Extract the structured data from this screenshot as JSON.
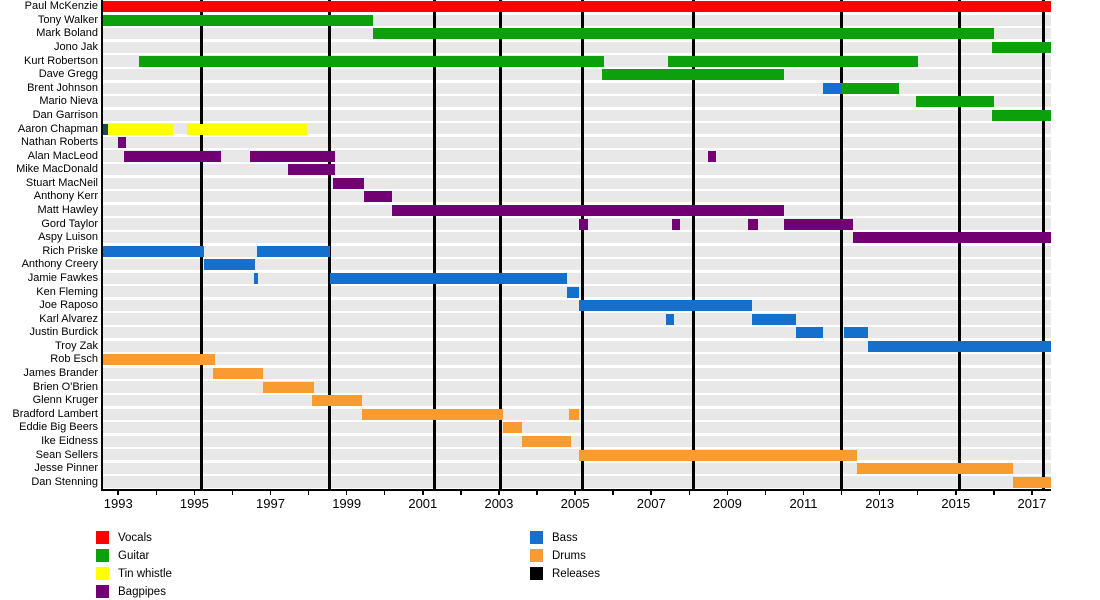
{
  "chart_data": {
    "type": "timeline-gantt",
    "description": "Band member timeline by instrument",
    "x_domain": [
      1992.6,
      2017.5
    ],
    "tick_years": [
      1993,
      1994,
      1995,
      1996,
      1997,
      1998,
      1999,
      2000,
      2001,
      2002,
      2003,
      2004,
      2005,
      2006,
      2007,
      2008,
      2009,
      2010,
      2011,
      2012,
      2013,
      2014,
      2015,
      2016,
      2017
    ],
    "label_years": [
      1993,
      1995,
      1997,
      1999,
      2001,
      2003,
      2005,
      2007,
      2009,
      2011,
      2013,
      2015,
      2017
    ],
    "instrument_colors": {
      "vocals": "#FF0000",
      "guitar": "#0CA10C",
      "tin_whistle": "#FFFF00",
      "bagpipes": "#730073",
      "bass": "#1470CC",
      "drums": "#F89C32",
      "releases": "#000000"
    },
    "members": [
      {
        "name": "Paul McKenzie",
        "bars": [
          {
            "instrument": "vocals",
            "start": 1992.6,
            "end": 2017.5
          }
        ]
      },
      {
        "name": "Tony Walker",
        "bars": [
          {
            "instrument": "guitar",
            "start": 1992.6,
            "end": 1999.7
          }
        ]
      },
      {
        "name": "Mark Boland",
        "bars": [
          {
            "instrument": "guitar",
            "start": 1999.7,
            "end": 2016.0
          }
        ]
      },
      {
        "name": "Jono Jak",
        "bars": [
          {
            "instrument": "guitar",
            "start": 2015.95,
            "end": 2017.5
          }
        ]
      },
      {
        "name": "Kurt Robertson",
        "bars": [
          {
            "instrument": "guitar",
            "start": 1993.55,
            "end": 2005.75
          },
          {
            "instrument": "guitar",
            "start": 2007.45,
            "end": 2014.0
          }
        ]
      },
      {
        "name": "Dave Gregg",
        "bars": [
          {
            "instrument": "guitar",
            "start": 2005.7,
            "end": 2010.5
          }
        ]
      },
      {
        "name": "Brent Johnson",
        "bars": [
          {
            "instrument": "bass",
            "start": 2011.5,
            "end": 2012.0
          },
          {
            "instrument": "guitar",
            "start": 2012.0,
            "end": 2013.5
          }
        ]
      },
      {
        "name": "Mario Nieva",
        "bars": [
          {
            "instrument": "guitar",
            "start": 2013.95,
            "end": 2016.0
          }
        ]
      },
      {
        "name": "Dan Garrison",
        "bars": [
          {
            "instrument": "guitar",
            "start": 2015.95,
            "end": 2017.5
          }
        ]
      },
      {
        "name": "Aaron Chapman",
        "bars": [
          {
            "instrument": "releases",
            "color": "#1C4A57",
            "start": 1992.6,
            "end": 1992.72
          },
          {
            "instrument": "tin_whistle",
            "start": 1992.72,
            "end": 1994.45
          },
          {
            "instrument": "tin_whistle",
            "start": 1994.8,
            "end": 1997.95
          }
        ]
      },
      {
        "name": "Nathan Roberts",
        "bars": [
          {
            "instrument": "bagpipes",
            "start": 1993.0,
            "end": 1993.2
          }
        ]
      },
      {
        "name": "Alan MacLeod",
        "bars": [
          {
            "instrument": "bagpipes",
            "start": 1993.15,
            "end": 1995.7
          },
          {
            "instrument": "bagpipes",
            "start": 1996.45,
            "end": 1998.7
          },
          {
            "instrument": "bagpipes",
            "start": 2008.5,
            "end": 2008.7
          }
        ]
      },
      {
        "name": "Mike MacDonald",
        "bars": [
          {
            "instrument": "bagpipes",
            "start": 1997.45,
            "end": 1998.7
          }
        ]
      },
      {
        "name": "Stuart MacNeil",
        "bars": [
          {
            "instrument": "bagpipes",
            "start": 1998.65,
            "end": 1999.45
          }
        ]
      },
      {
        "name": "Anthony Kerr",
        "bars": [
          {
            "instrument": "bagpipes",
            "start": 1999.45,
            "end": 2000.2
          }
        ]
      },
      {
        "name": "Matt Hawley",
        "bars": [
          {
            "instrument": "bagpipes",
            "start": 2000.2,
            "end": 2010.5
          }
        ]
      },
      {
        "name": "Gord Taylor",
        "bars": [
          {
            "instrument": "bagpipes",
            "start": 2005.1,
            "end": 2005.35
          },
          {
            "instrument": "bagpipes",
            "start": 2007.55,
            "end": 2007.75
          },
          {
            "instrument": "bagpipes",
            "start": 2009.55,
            "end": 2009.8
          },
          {
            "instrument": "bagpipes",
            "start": 2010.5,
            "end": 2012.3
          }
        ]
      },
      {
        "name": "Aspy Luison",
        "bars": [
          {
            "instrument": "bagpipes",
            "start": 2012.3,
            "end": 2017.5
          }
        ]
      },
      {
        "name": "Rich Priske",
        "bars": [
          {
            "instrument": "bass",
            "start": 1992.6,
            "end": 1995.25
          },
          {
            "instrument": "bass",
            "start": 1996.65,
            "end": 1998.55
          }
        ]
      },
      {
        "name": "Anthony Creery",
        "bars": [
          {
            "instrument": "bass",
            "start": 1995.25,
            "end": 1996.6
          }
        ]
      },
      {
        "name": "Jamie Fawkes",
        "bars": [
          {
            "instrument": "bass",
            "start": 1996.57,
            "end": 1996.68
          },
          {
            "instrument": "bass",
            "start": 1998.55,
            "end": 2004.8
          }
        ]
      },
      {
        "name": "Ken Fleming",
        "bars": [
          {
            "instrument": "bass",
            "start": 2004.8,
            "end": 2005.1
          }
        ]
      },
      {
        "name": "Joe Raposo",
        "bars": [
          {
            "instrument": "bass",
            "start": 2005.1,
            "end": 2009.65
          }
        ]
      },
      {
        "name": "Karl Alvarez",
        "bars": [
          {
            "instrument": "bass",
            "start": 2007.4,
            "end": 2007.6
          },
          {
            "instrument": "bass",
            "start": 2009.65,
            "end": 2010.8
          }
        ]
      },
      {
        "name": "Justin Burdick",
        "bars": [
          {
            "instrument": "bass",
            "start": 2010.8,
            "end": 2011.5
          },
          {
            "instrument": "bass",
            "start": 2012.05,
            "end": 2012.7
          }
        ]
      },
      {
        "name": "Troy Zak",
        "bars": [
          {
            "instrument": "bass",
            "start": 2012.7,
            "end": 2017.5
          }
        ]
      },
      {
        "name": "Rob Esch",
        "bars": [
          {
            "instrument": "drums",
            "start": 1992.6,
            "end": 1995.55
          }
        ]
      },
      {
        "name": "James Brander",
        "bars": [
          {
            "instrument": "drums",
            "start": 1995.5,
            "end": 1996.8
          }
        ]
      },
      {
        "name": "Brien O'Brien",
        "bars": [
          {
            "instrument": "drums",
            "start": 1996.8,
            "end": 1998.15
          }
        ]
      },
      {
        "name": "Glenn Kruger",
        "bars": [
          {
            "instrument": "drums",
            "start": 1998.1,
            "end": 1999.4
          }
        ]
      },
      {
        "name": "Bradford Lambert",
        "bars": [
          {
            "instrument": "drums",
            "start": 1999.4,
            "end": 2003.1
          },
          {
            "instrument": "drums",
            "start": 2004.85,
            "end": 2005.1
          }
        ]
      },
      {
        "name": "Eddie Big Beers",
        "bars": [
          {
            "instrument": "drums",
            "start": 2003.1,
            "end": 2003.6
          }
        ]
      },
      {
        "name": "Ike Eidness",
        "bars": [
          {
            "instrument": "drums",
            "start": 2003.6,
            "end": 2004.9
          }
        ]
      },
      {
        "name": "Sean Sellers",
        "bars": [
          {
            "instrument": "drums",
            "start": 2005.1,
            "end": 2012.4
          }
        ]
      },
      {
        "name": "Jesse Pinner",
        "bars": [
          {
            "instrument": "drums",
            "start": 2012.4,
            "end": 2016.5
          }
        ]
      },
      {
        "name": "Dan Stenning",
        "bars": [
          {
            "instrument": "drums",
            "start": 2016.5,
            "end": 2017.5
          }
        ]
      }
    ],
    "release_lines": [
      1995.2,
      1998.55,
      2001.3,
      2003.05,
      2005.2,
      2008.1,
      2012.0,
      2015.1,
      2017.3
    ],
    "legend": {
      "left_column": [
        {
          "label": "Vocals",
          "color": "#FF0000"
        },
        {
          "label": "Guitar",
          "color": "#0CA10C"
        },
        {
          "label": "Tin whistle",
          "color": "#FFFF00"
        },
        {
          "label": "Bagpipes",
          "color": "#730073"
        }
      ],
      "right_column": [
        {
          "label": "Bass",
          "color": "#1470CC"
        },
        {
          "label": "Drums",
          "color": "#F89C32"
        },
        {
          "label": "Releases",
          "color": "#000000"
        }
      ]
    }
  }
}
